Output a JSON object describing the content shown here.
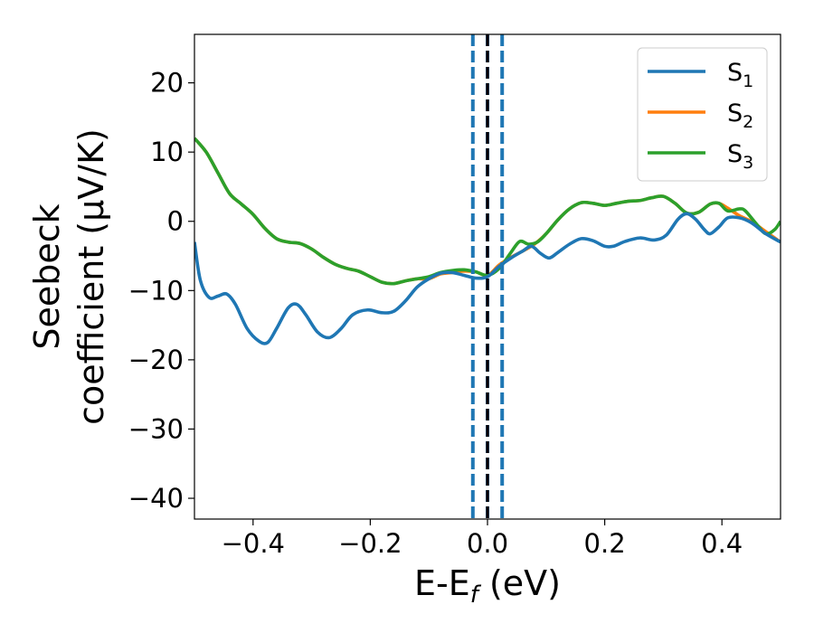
{
  "chart_data": {
    "type": "line",
    "xlabel": "E-E",
    "xlabel_sub": "f",
    "xlabel_unit": " (eV)",
    "ylabel_line1": "Seebeck",
    "ylabel_line2": "coefficient  (μV/K)",
    "xlim": [
      -0.5,
      0.5
    ],
    "ylim": [
      -43,
      27
    ],
    "xticks": [
      -0.4,
      -0.2,
      0.0,
      0.2,
      0.4
    ],
    "xtick_labels": [
      "−0.4",
      "−0.2",
      "0.0",
      "0.2",
      "0.4"
    ],
    "yticks": [
      20,
      10,
      0,
      -10,
      -20,
      -30,
      -40
    ],
    "ytick_labels": [
      "20",
      "10",
      "0",
      "−10",
      "−20",
      "−30",
      "−40"
    ],
    "grid": false,
    "legend_position": "top-right",
    "vertical_lines": [
      {
        "x": -0.025,
        "style": "dashed",
        "color": "#1f77b4"
      },
      {
        "x": 0.0,
        "style": "dashed",
        "color": "#1f77b4"
      },
      {
        "x": 0.025,
        "style": "dashed",
        "color": "#1f77b4"
      },
      {
        "x": 0.0,
        "style": "dashed",
        "color": "#000000"
      }
    ],
    "series": [
      {
        "name": "S",
        "sub": "1",
        "color": "#1f77b4",
        "points": [
          [
            -0.5,
            -3.0
          ],
          [
            -0.49,
            -8.5
          ],
          [
            -0.475,
            -11.0
          ],
          [
            -0.46,
            -10.8
          ],
          [
            -0.445,
            -10.5
          ],
          [
            -0.43,
            -12.0
          ],
          [
            -0.41,
            -15.5
          ],
          [
            -0.39,
            -17.3
          ],
          [
            -0.375,
            -17.5
          ],
          [
            -0.36,
            -15.5
          ],
          [
            -0.34,
            -12.5
          ],
          [
            -0.325,
            -12.0
          ],
          [
            -0.31,
            -13.5
          ],
          [
            -0.29,
            -16.0
          ],
          [
            -0.27,
            -16.8
          ],
          [
            -0.25,
            -15.5
          ],
          [
            -0.23,
            -13.5
          ],
          [
            -0.205,
            -12.8
          ],
          [
            -0.18,
            -13.2
          ],
          [
            -0.16,
            -13.0
          ],
          [
            -0.14,
            -11.5
          ],
          [
            -0.12,
            -9.5
          ],
          [
            -0.1,
            -8.3
          ],
          [
            -0.08,
            -7.5
          ],
          [
            -0.06,
            -7.4
          ],
          [
            -0.04,
            -7.8
          ],
          [
            -0.02,
            -8.2
          ],
          [
            0.0,
            -8.0
          ],
          [
            0.02,
            -6.5
          ],
          [
            0.04,
            -5.3
          ],
          [
            0.06,
            -4.3
          ],
          [
            0.075,
            -3.6
          ],
          [
            0.09,
            -4.6
          ],
          [
            0.105,
            -5.3
          ],
          [
            0.12,
            -4.5
          ],
          [
            0.14,
            -3.3
          ],
          [
            0.16,
            -2.5
          ],
          [
            0.18,
            -2.8
          ],
          [
            0.2,
            -3.6
          ],
          [
            0.215,
            -3.6
          ],
          [
            0.235,
            -2.9
          ],
          [
            0.26,
            -2.4
          ],
          [
            0.285,
            -2.7
          ],
          [
            0.305,
            -2.0
          ],
          [
            0.325,
            0.3
          ],
          [
            0.34,
            1.1
          ],
          [
            0.355,
            0.3
          ],
          [
            0.37,
            -1.2
          ],
          [
            0.38,
            -1.8
          ],
          [
            0.395,
            -0.8
          ],
          [
            0.41,
            0.5
          ],
          [
            0.43,
            0.5
          ],
          [
            0.45,
            -0.2
          ],
          [
            0.475,
            -1.8
          ],
          [
            0.5,
            -3.0
          ]
        ]
      },
      {
        "name": "S",
        "sub": "2",
        "color": "#ff7f0e",
        "points": [
          [
            -0.5,
            12.0
          ],
          [
            -0.48,
            10.0
          ],
          [
            -0.46,
            7.0
          ],
          [
            -0.44,
            4.0
          ],
          [
            -0.42,
            2.5
          ],
          [
            -0.4,
            1.0
          ],
          [
            -0.38,
            -1.0
          ],
          [
            -0.36,
            -2.5
          ],
          [
            -0.34,
            -3.0
          ],
          [
            -0.32,
            -3.2
          ],
          [
            -0.3,
            -4.0
          ],
          [
            -0.28,
            -5.2
          ],
          [
            -0.26,
            -6.2
          ],
          [
            -0.24,
            -6.8
          ],
          [
            -0.22,
            -7.2
          ],
          [
            -0.2,
            -8.0
          ],
          [
            -0.18,
            -8.8
          ],
          [
            -0.16,
            -9.0
          ],
          [
            -0.14,
            -8.6
          ],
          [
            -0.12,
            -8.3
          ],
          [
            -0.1,
            -8.3
          ],
          [
            -0.08,
            -7.6
          ],
          [
            -0.06,
            -7.4
          ],
          [
            -0.04,
            -7.2
          ],
          [
            -0.02,
            -7.3
          ],
          [
            0.0,
            -7.8
          ],
          [
            0.02,
            -6.3
          ],
          [
            0.04,
            -5.2
          ],
          [
            0.06,
            -4.3
          ],
          [
            0.08,
            -3.3
          ],
          [
            0.1,
            -1.8
          ],
          [
            0.12,
            0.2
          ],
          [
            0.14,
            1.8
          ],
          [
            0.16,
            2.7
          ],
          [
            0.18,
            2.6
          ],
          [
            0.2,
            2.3
          ],
          [
            0.22,
            2.6
          ],
          [
            0.24,
            2.9
          ],
          [
            0.26,
            3.0
          ],
          [
            0.28,
            3.4
          ],
          [
            0.3,
            3.6
          ],
          [
            0.32,
            2.6
          ],
          [
            0.34,
            1.2
          ],
          [
            0.36,
            1.3
          ],
          [
            0.38,
            2.5
          ],
          [
            0.395,
            2.6
          ],
          [
            0.41,
            1.9
          ],
          [
            0.43,
            0.8
          ],
          [
            0.45,
            0.0
          ],
          [
            0.47,
            -1.2
          ],
          [
            0.49,
            -2.4
          ],
          [
            0.5,
            -3.0
          ]
        ]
      },
      {
        "name": "S",
        "sub": "3",
        "color": "#2ca02c",
        "points": [
          [
            -0.5,
            12.0
          ],
          [
            -0.48,
            10.0
          ],
          [
            -0.46,
            7.0
          ],
          [
            -0.44,
            4.0
          ],
          [
            -0.42,
            2.5
          ],
          [
            -0.4,
            1.0
          ],
          [
            -0.38,
            -1.0
          ],
          [
            -0.36,
            -2.5
          ],
          [
            -0.34,
            -3.0
          ],
          [
            -0.32,
            -3.2
          ],
          [
            -0.3,
            -4.0
          ],
          [
            -0.28,
            -5.2
          ],
          [
            -0.26,
            -6.2
          ],
          [
            -0.24,
            -6.8
          ],
          [
            -0.22,
            -7.2
          ],
          [
            -0.2,
            -8.0
          ],
          [
            -0.18,
            -8.8
          ],
          [
            -0.16,
            -9.0
          ],
          [
            -0.14,
            -8.6
          ],
          [
            -0.12,
            -8.3
          ],
          [
            -0.1,
            -8.0
          ],
          [
            -0.08,
            -7.4
          ],
          [
            -0.06,
            -7.1
          ],
          [
            -0.04,
            -7.0
          ],
          [
            -0.02,
            -7.3
          ],
          [
            0.0,
            -7.8
          ],
          [
            0.02,
            -6.8
          ],
          [
            0.04,
            -4.5
          ],
          [
            0.055,
            -2.9
          ],
          [
            0.07,
            -3.3
          ],
          [
            0.085,
            -3.0
          ],
          [
            0.1,
            -1.8
          ],
          [
            0.12,
            0.2
          ],
          [
            0.14,
            1.8
          ],
          [
            0.16,
            2.7
          ],
          [
            0.18,
            2.6
          ],
          [
            0.2,
            2.3
          ],
          [
            0.22,
            2.6
          ],
          [
            0.24,
            2.9
          ],
          [
            0.26,
            3.0
          ],
          [
            0.28,
            3.4
          ],
          [
            0.3,
            3.6
          ],
          [
            0.32,
            2.6
          ],
          [
            0.34,
            1.2
          ],
          [
            0.36,
            1.3
          ],
          [
            0.38,
            2.5
          ],
          [
            0.395,
            2.6
          ],
          [
            0.41,
            1.5
          ],
          [
            0.43,
            1.8
          ],
          [
            0.44,
            1.5
          ],
          [
            0.46,
            -0.5
          ],
          [
            0.475,
            -1.8
          ],
          [
            0.49,
            -1.2
          ],
          [
            0.5,
            0.0
          ]
        ]
      }
    ]
  }
}
